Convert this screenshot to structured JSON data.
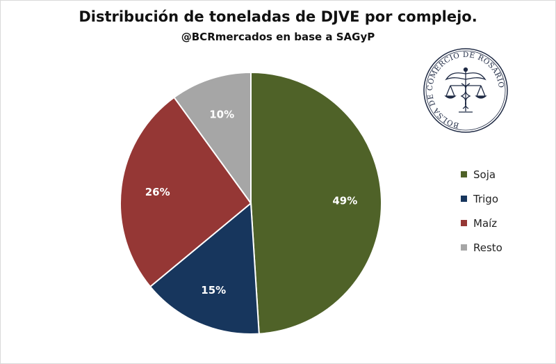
{
  "chart_data": {
    "type": "pie",
    "title": "Distribución de toneladas de DJVE por complejo.",
    "subtitle": "@BCRmercados en base a SAGyP",
    "categories": [
      "Soja",
      "Trigo",
      "Maíz",
      "Resto"
    ],
    "values": [
      49,
      15,
      26,
      10
    ],
    "labels": [
      "49%",
      "15%",
      "26%",
      "10%"
    ],
    "colors": [
      "#4f6228",
      "#17365d",
      "#953735",
      "#a6a6a6"
    ],
    "legend_position": "right"
  },
  "logo": {
    "text": "BOLSA DE COMERCIO DE ROSARIO",
    "icon": "caduceus-scales-icon"
  }
}
